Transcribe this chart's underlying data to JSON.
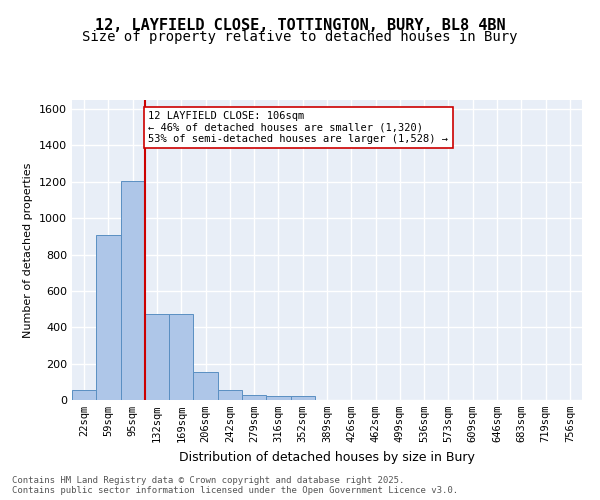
{
  "title1": "12, LAYFIELD CLOSE, TOTTINGTON, BURY, BL8 4BN",
  "title2": "Size of property relative to detached houses in Bury",
  "xlabel": "Distribution of detached houses by size in Bury",
  "ylabel": "Number of detached properties",
  "bar_values": [
    55,
    910,
    1205,
    475,
    475,
    155,
    55,
    28,
    20,
    20,
    0,
    0,
    0,
    0,
    0,
    0,
    0,
    0,
    0,
    0,
    0
  ],
  "bar_labels": [
    "22sqm",
    "59sqm",
    "95sqm",
    "132sqm",
    "169sqm",
    "206sqm",
    "242sqm",
    "279sqm",
    "316sqm",
    "352sqm",
    "389sqm",
    "426sqm",
    "462sqm",
    "499sqm",
    "536sqm",
    "573sqm",
    "609sqm",
    "646sqm",
    "683sqm",
    "719sqm",
    "756sqm"
  ],
  "bar_color": "#aec6e8",
  "bar_edge_color": "#5a8fc2",
  "background_color": "#e8eef7",
  "grid_color": "#ffffff",
  "vline_x": 2.5,
  "vline_color": "#cc0000",
  "annotation_text": "12 LAYFIELD CLOSE: 106sqm\n← 46% of detached houses are smaller (1,320)\n53% of semi-detached houses are larger (1,528) →",
  "annotation_box_color": "#ffffff",
  "annotation_box_edge": "#cc0000",
  "ylim": [
    0,
    1650
  ],
  "yticks": [
    0,
    200,
    400,
    600,
    800,
    1000,
    1200,
    1400,
    1600
  ],
  "footer_text": "Contains HM Land Registry data © Crown copyright and database right 2025.\nContains public sector information licensed under the Open Government Licence v3.0.",
  "title_fontsize": 11,
  "subtitle_fontsize": 10
}
